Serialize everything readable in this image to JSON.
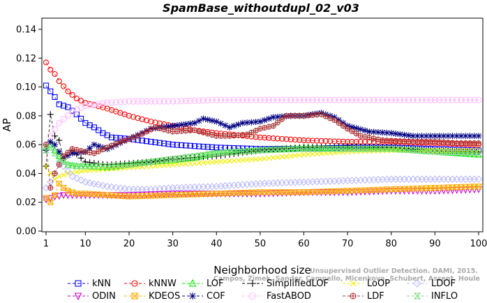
{
  "chart_data": {
    "type": "line",
    "title": "SpamBase_withoutdupl_02_v03",
    "xlabel": "Neighborhood size",
    "ylabel": "AP",
    "xlim": [
      1,
      100
    ],
    "ylim": [
      0.0,
      0.14
    ],
    "x_ticks": [
      1,
      10,
      20,
      30,
      40,
      50,
      60,
      70,
      80,
      90,
      100
    ],
    "y_ticks": [
      0.0,
      0.02,
      0.04,
      0.06,
      0.08,
      0.1,
      0.12,
      0.14
    ],
    "x_tick_labels": [
      "1",
      "10",
      "20",
      "30",
      "40",
      "50",
      "60",
      "70",
      "80",
      "90",
      "100"
    ],
    "y_tick_labels": [
      "0.00",
      "0.02",
      "0.04",
      "0.06",
      "0.08",
      "0.10",
      "0.12",
      "0.14"
    ],
    "legend_position": "bottom",
    "series": [
      {
        "name": "kNN",
        "color": "#0000ff",
        "marker": "square",
        "keys": [
          [
            1,
            0.101
          ],
          [
            2,
            0.097
          ],
          [
            3,
            0.093
          ],
          [
            4,
            0.088
          ],
          [
            6,
            0.086
          ],
          [
            8,
            0.081
          ],
          [
            10,
            0.075
          ],
          [
            12,
            0.072
          ],
          [
            14,
            0.068
          ],
          [
            16,
            0.065
          ],
          [
            20,
            0.064
          ],
          [
            25,
            0.062
          ],
          [
            30,
            0.06
          ],
          [
            40,
            0.058
          ],
          [
            50,
            0.057
          ],
          [
            60,
            0.057
          ],
          [
            70,
            0.058
          ],
          [
            80,
            0.058
          ],
          [
            90,
            0.057
          ],
          [
            100,
            0.056
          ]
        ]
      },
      {
        "name": "kNNW",
        "color": "#ff0000",
        "marker": "circle",
        "keys": [
          [
            1,
            0.117
          ],
          [
            2,
            0.112
          ],
          [
            3,
            0.109
          ],
          [
            4,
            0.104
          ],
          [
            6,
            0.097
          ],
          [
            8,
            0.092
          ],
          [
            10,
            0.089
          ],
          [
            15,
            0.085
          ],
          [
            20,
            0.08
          ],
          [
            25,
            0.076
          ],
          [
            30,
            0.073
          ],
          [
            35,
            0.07
          ],
          [
            40,
            0.068
          ],
          [
            50,
            0.065
          ],
          [
            60,
            0.063
          ],
          [
            70,
            0.062
          ],
          [
            80,
            0.062
          ],
          [
            90,
            0.061
          ],
          [
            100,
            0.06
          ]
        ]
      },
      {
        "name": "LOF",
        "color": "#00ee00",
        "marker": "triangle-up",
        "keys": [
          [
            1,
            0.058
          ],
          [
            2,
            0.06
          ],
          [
            3,
            0.056
          ],
          [
            4,
            0.052
          ],
          [
            6,
            0.046
          ],
          [
            8,
            0.045
          ],
          [
            10,
            0.045
          ],
          [
            15,
            0.044
          ],
          [
            20,
            0.046
          ],
          [
            25,
            0.048
          ],
          [
            30,
            0.049
          ],
          [
            35,
            0.051
          ],
          [
            40,
            0.054
          ],
          [
            50,
            0.056
          ],
          [
            60,
            0.058
          ],
          [
            70,
            0.057
          ],
          [
            80,
            0.057
          ],
          [
            90,
            0.055
          ],
          [
            100,
            0.053
          ]
        ]
      },
      {
        "name": "SimplifiedLOF",
        "color": "#000000",
        "marker": "plus",
        "keys": [
          [
            1,
            0.045
          ],
          [
            2,
            0.081
          ],
          [
            3,
            0.066
          ],
          [
            4,
            0.063
          ],
          [
            5,
            0.05
          ],
          [
            7,
            0.056
          ],
          [
            10,
            0.048
          ],
          [
            15,
            0.046
          ],
          [
            20,
            0.047
          ],
          [
            25,
            0.048
          ],
          [
            30,
            0.05
          ],
          [
            35,
            0.051
          ],
          [
            40,
            0.052
          ],
          [
            50,
            0.056
          ],
          [
            60,
            0.058
          ],
          [
            70,
            0.059
          ],
          [
            80,
            0.058
          ],
          [
            90,
            0.056
          ],
          [
            100,
            0.055
          ]
        ]
      },
      {
        "name": "LoOP",
        "color": "#eeee00",
        "marker": "cross",
        "keys": [
          [
            1,
            0.045
          ],
          [
            2,
            0.04
          ],
          [
            3,
            0.036
          ],
          [
            4,
            0.038
          ],
          [
            6,
            0.04
          ],
          [
            10,
            0.042
          ],
          [
            15,
            0.043
          ],
          [
            20,
            0.044
          ],
          [
            25,
            0.045
          ],
          [
            30,
            0.046
          ],
          [
            40,
            0.048
          ],
          [
            50,
            0.05
          ],
          [
            60,
            0.053
          ],
          [
            70,
            0.055
          ],
          [
            80,
            0.056
          ],
          [
            90,
            0.056
          ],
          [
            100,
            0.056
          ]
        ]
      },
      {
        "name": "LDOF",
        "color": "#bbbbff",
        "marker": "diamond",
        "keys": [
          [
            1,
            0.03
          ],
          [
            2,
            0.034
          ],
          [
            3,
            0.04
          ],
          [
            4,
            0.047
          ],
          [
            5,
            0.045
          ],
          [
            7,
            0.038
          ],
          [
            10,
            0.034
          ],
          [
            15,
            0.031
          ],
          [
            20,
            0.029
          ],
          [
            25,
            0.029
          ],
          [
            30,
            0.03
          ],
          [
            40,
            0.031
          ],
          [
            50,
            0.033
          ],
          [
            60,
            0.034
          ],
          [
            70,
            0.035
          ],
          [
            80,
            0.036
          ],
          [
            90,
            0.036
          ],
          [
            100,
            0.036
          ]
        ]
      },
      {
        "name": "ODIN",
        "color": "#cc00cc",
        "marker": "triangle-down",
        "keys": [
          [
            1,
            0.022
          ],
          [
            2,
            0.023
          ],
          [
            3,
            0.024
          ],
          [
            5,
            0.025
          ],
          [
            10,
            0.025
          ],
          [
            20,
            0.025
          ],
          [
            30,
            0.026
          ],
          [
            40,
            0.026
          ],
          [
            50,
            0.026
          ],
          [
            60,
            0.027
          ],
          [
            70,
            0.027
          ],
          [
            80,
            0.028
          ],
          [
            90,
            0.028
          ],
          [
            100,
            0.029
          ]
        ]
      },
      {
        "name": "KDEOS",
        "color": "#ffaa00",
        "marker": "square-x",
        "keys": [
          [
            1,
            0.023
          ],
          [
            2,
            0.02
          ],
          [
            3,
            0.025
          ],
          [
            4,
            0.033
          ],
          [
            5,
            0.03
          ],
          [
            6,
            0.028
          ],
          [
            8,
            0.026
          ],
          [
            10,
            0.026
          ],
          [
            20,
            0.024
          ],
          [
            30,
            0.025
          ],
          [
            40,
            0.026
          ],
          [
            50,
            0.027
          ],
          [
            60,
            0.027
          ],
          [
            70,
            0.028
          ],
          [
            80,
            0.029
          ],
          [
            90,
            0.03
          ],
          [
            100,
            0.031
          ]
        ]
      },
      {
        "name": "COF",
        "color": "#000080",
        "marker": "asterisk",
        "keys": [
          [
            1,
            0.056
          ],
          [
            2,
            0.062
          ],
          [
            3,
            0.06
          ],
          [
            4,
            0.055
          ],
          [
            5,
            0.051
          ],
          [
            7,
            0.054
          ],
          [
            10,
            0.055
          ],
          [
            12,
            0.06
          ],
          [
            15,
            0.057
          ],
          [
            20,
            0.064
          ],
          [
            23,
            0.068
          ],
          [
            25,
            0.071
          ],
          [
            30,
            0.073
          ],
          [
            35,
            0.075
          ],
          [
            37,
            0.078
          ],
          [
            40,
            0.076
          ],
          [
            43,
            0.072
          ],
          [
            46,
            0.075
          ],
          [
            50,
            0.076
          ],
          [
            53,
            0.079
          ],
          [
            57,
            0.08
          ],
          [
            60,
            0.08
          ],
          [
            64,
            0.082
          ],
          [
            67,
            0.079
          ],
          [
            70,
            0.073
          ],
          [
            75,
            0.069
          ],
          [
            80,
            0.068
          ],
          [
            85,
            0.066
          ],
          [
            90,
            0.066
          ],
          [
            95,
            0.066
          ],
          [
            100,
            0.066
          ]
        ]
      },
      {
        "name": "FastABOD",
        "color": "#ffbbff",
        "marker": "circle-open",
        "keys": [
          [
            1,
            0.06
          ],
          [
            2,
            0.066
          ],
          [
            4,
            0.075
          ],
          [
            7,
            0.083
          ],
          [
            10,
            0.087
          ],
          [
            15,
            0.089
          ],
          [
            20,
            0.09
          ],
          [
            30,
            0.09
          ],
          [
            40,
            0.091
          ],
          [
            50,
            0.091
          ],
          [
            60,
            0.091
          ],
          [
            70,
            0.091
          ],
          [
            80,
            0.091
          ],
          [
            90,
            0.091
          ],
          [
            100,
            0.091
          ]
        ]
      },
      {
        "name": "LDF",
        "color": "#aa3333",
        "marker": "circle-plus",
        "keys": [
          [
            1,
            0.06
          ],
          [
            2,
            0.03
          ],
          [
            3,
            0.04
          ],
          [
            5,
            0.052
          ],
          [
            7,
            0.057
          ],
          [
            10,
            0.055
          ],
          [
            12,
            0.054
          ],
          [
            15,
            0.058
          ],
          [
            18,
            0.062
          ],
          [
            22,
            0.066
          ],
          [
            26,
            0.072
          ],
          [
            30,
            0.069
          ],
          [
            35,
            0.07
          ],
          [
            40,
            0.066
          ],
          [
            43,
            0.066
          ],
          [
            47,
            0.067
          ],
          [
            50,
            0.071
          ],
          [
            53,
            0.073
          ],
          [
            56,
            0.08
          ],
          [
            60,
            0.08
          ],
          [
            64,
            0.081
          ],
          [
            67,
            0.077
          ],
          [
            70,
            0.071
          ],
          [
            73,
            0.066
          ],
          [
            78,
            0.063
          ],
          [
            85,
            0.062
          ],
          [
            90,
            0.062
          ],
          [
            95,
            0.061
          ],
          [
            100,
            0.061
          ]
        ]
      },
      {
        "name": "INFLO",
        "color": "#77dd77",
        "marker": "hourglass",
        "keys": [
          [
            1,
            0.056
          ],
          [
            2,
            0.058
          ],
          [
            3,
            0.054
          ],
          [
            4,
            0.05
          ],
          [
            6,
            0.046
          ],
          [
            8,
            0.045
          ],
          [
            10,
            0.045
          ],
          [
            15,
            0.045
          ],
          [
            20,
            0.046
          ],
          [
            25,
            0.048
          ],
          [
            30,
            0.05
          ],
          [
            35,
            0.052
          ],
          [
            40,
            0.054
          ],
          [
            50,
            0.056
          ],
          [
            60,
            0.057
          ],
          [
            70,
            0.057
          ],
          [
            80,
            0.057
          ],
          [
            90,
            0.055
          ],
          [
            100,
            0.054
          ]
        ]
      }
    ]
  },
  "legend_rows": [
    [
      "kNN",
      "kNNW",
      "LOF",
      "SimplifiedLOF",
      "LoOP",
      "LDOF"
    ],
    [
      "ODIN",
      "KDEOS",
      "COF",
      "FastABOD",
      "LDF",
      "INFLO"
    ]
  ],
  "watermark": {
    "line1": "Unsupervised Outlier Detection. DAMI, 2015.",
    "line2": "Campos, Zimek, Sander, Campello, Micenkova, Schubert, Assent, Houle"
  }
}
